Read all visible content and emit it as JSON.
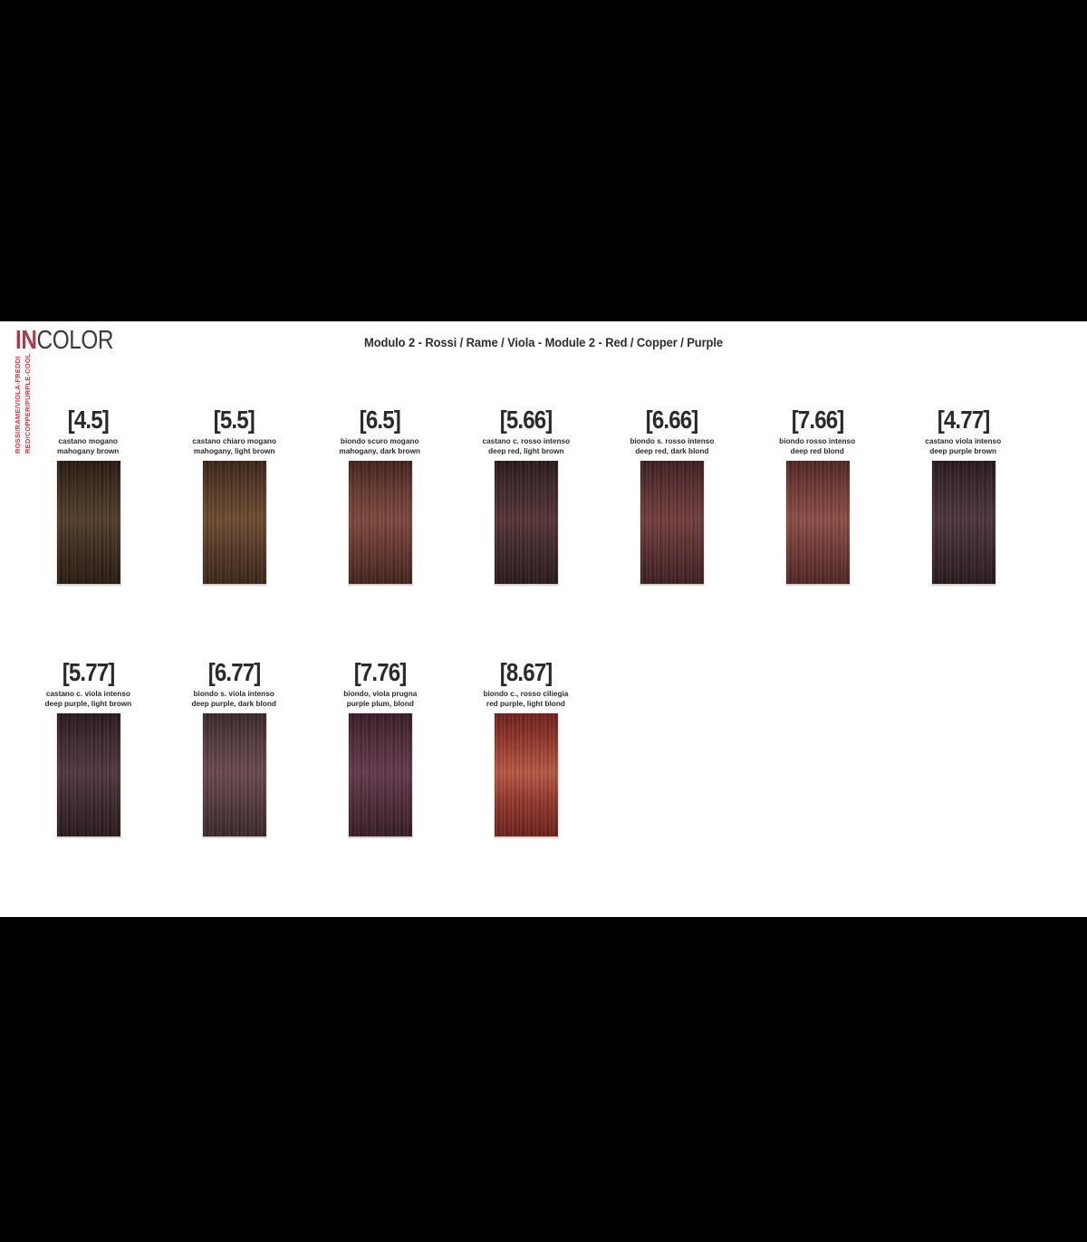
{
  "brand": {
    "part1": "IN",
    "part2": "COLOR"
  },
  "header": {
    "title": "Modulo 2 - Rossi / Rame / Viola - Module 2 - Red / Copper / Purple"
  },
  "side_label": {
    "line1": "ROSSI/RAME/VIOLA-FREDDI",
    "line2": "RED/COPPER/PURPLE-COOL"
  },
  "ui_colors": {
    "brand_in_maroon": "#a83c4e",
    "brand_color_gray": "#3b3b3d",
    "title_text": "#2d2d2d",
    "side_label_red": "#e03535",
    "label_text": "#2a2a2a",
    "letterbox_black": "#000000",
    "page_white": "#ffffff"
  },
  "rows": [
    [
      {
        "code": "[4.5]",
        "name_it": "castano mogano",
        "name_en": "mahogany brown",
        "base": "#3f2d20",
        "dark": "#2a1d14",
        "light": "#54402c"
      },
      {
        "code": "[5.5]",
        "name_it": "castano chiaro mogano",
        "name_en": "mahogany, light brown",
        "base": "#573b29",
        "dark": "#3c2819",
        "light": "#6f4e33"
      },
      {
        "code": "[6.5]",
        "name_it": "biondo scuro mogano",
        "name_en": "mahogany, dark brown",
        "base": "#653a31",
        "dark": "#45251f",
        "light": "#7d4a3e"
      },
      {
        "code": "[5.66]",
        "name_it": "castano c. rosso intenso",
        "name_en": "deep red, light brown",
        "base": "#422a2b",
        "dark": "#2d1c1d",
        "light": "#573738"
      },
      {
        "code": "[6.66]",
        "name_it": "biondo s. rosso intenso",
        "name_en": "deep red, dark blond",
        "base": "#5c3132",
        "dark": "#3f2122",
        "light": "#733f40"
      },
      {
        "code": "[7.66]",
        "name_it": "biondo rosso intenso",
        "name_en": "deep red blond",
        "base": "#713c39",
        "dark": "#512826",
        "light": "#8d4f47"
      },
      {
        "code": "[4.77]",
        "name_it": "castano viola intenso",
        "name_en": "deep purple brown",
        "base": "#3d2a2e",
        "dark": "#291c1f",
        "light": "#50383d"
      }
    ],
    [
      {
        "code": "[5.77]",
        "name_it": "castano c. viola intenso",
        "name_en": "deep purple, light brown",
        "base": "#402a2e",
        "dark": "#2b1c1f",
        "light": "#533a40"
      },
      {
        "code": "[6.77]",
        "name_it": "biondo s. viola intenso",
        "name_en": "deep purple, dark blond",
        "base": "#563c40",
        "dark": "#3c2a2d",
        "light": "#6a4b50"
      },
      {
        "code": "[7.76]",
        "name_it": "biondo, viola prugna",
        "name_en": "purple plum, blond",
        "base": "#512e3d",
        "dark": "#381f2a",
        "light": "#653c4e"
      },
      {
        "code": "[8.67]",
        "name_it": "biondo c., rosso ciliegia",
        "name_en": "red purple, light blond",
        "base": "#93392e",
        "dark": "#6f241f",
        "light": "#b85a45"
      }
    ]
  ]
}
